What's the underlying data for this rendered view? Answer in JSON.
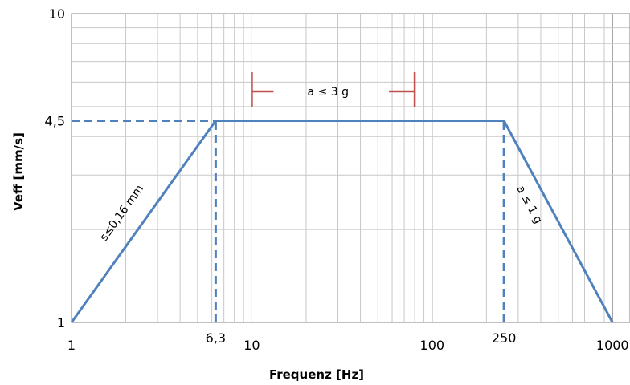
{
  "chart_data": {
    "type": "line",
    "x_scale": "log",
    "y_scale": "log",
    "xlabel": "Frequenz [Hz]",
    "ylabel": "Veff [mm/s]",
    "xlim": [
      1,
      1250
    ],
    "ylim": [
      1,
      10
    ],
    "x_ticks": [
      {
        "value": 1,
        "label": "1"
      },
      {
        "value": 6.3,
        "label": "6,3"
      },
      {
        "value": 10,
        "label": "10"
      },
      {
        "value": 100,
        "label": "100"
      },
      {
        "value": 250,
        "label": "250"
      },
      {
        "value": 1000,
        "label": "1000"
      }
    ],
    "y_ticks": [
      {
        "value": 1,
        "label": "1"
      },
      {
        "value": 4.5,
        "label": "4,5"
      },
      {
        "value": 10,
        "label": "10"
      }
    ],
    "grid": true,
    "series": [
      {
        "color": "#4f81bd",
        "x": [
          1,
          6.3,
          250,
          1000
        ],
        "y": [
          1,
          4.5,
          4.5,
          1
        ]
      }
    ],
    "reference_lines": [
      {
        "style": "dashed",
        "color": "#4f81bd",
        "x": [
          1,
          6.3
        ],
        "y": [
          4.5,
          4.5
        ]
      },
      {
        "style": "dashed",
        "color": "#4f81bd",
        "x": [
          6.3,
          6.3
        ],
        "y": [
          1,
          4.5
        ]
      },
      {
        "style": "dashed",
        "color": "#4f81bd",
        "x": [
          250,
          250
        ],
        "y": [
          1,
          4.5
        ]
      }
    ],
    "bracket": {
      "label": "a ≤ 3 g",
      "color": "#c0504d",
      "x_start": 10,
      "x_end": 80,
      "y": 5.6
    },
    "annotations": [
      {
        "text": "s≤0,16 mm",
        "near_segment": "left slope"
      },
      {
        "text": "a ≤ 1 g",
        "near_segment": "right slope"
      }
    ]
  }
}
